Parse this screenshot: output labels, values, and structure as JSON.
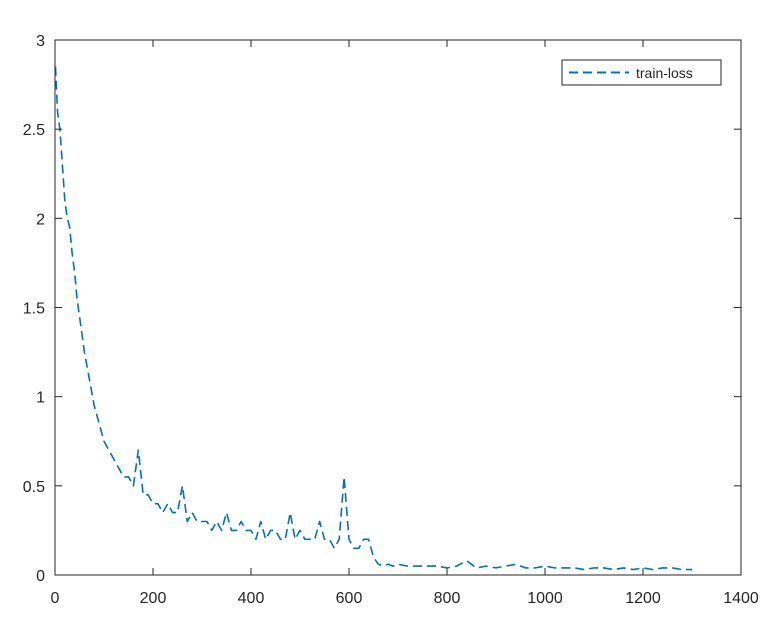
{
  "colors": {
    "series": "#0072BD",
    "axis": "#262626",
    "background": "#ffffff"
  },
  "chart_data": {
    "type": "line",
    "title": "",
    "xlabel": "",
    "ylabel": "",
    "xlim": [
      0,
      1400
    ],
    "ylim": [
      0,
      3
    ],
    "xticks": [
      0,
      200,
      400,
      600,
      800,
      1000,
      1200,
      1400
    ],
    "xtick_labels": [
      "0",
      "200",
      "400",
      "600",
      "800",
      "1000",
      "1200",
      "1400"
    ],
    "yticks": [
      0,
      0.5,
      1,
      1.5,
      2,
      2.5,
      3
    ],
    "ytick_labels": [
      "0",
      "0.5",
      "1",
      "1.5",
      "2",
      "2.5",
      "3"
    ],
    "grid": false,
    "box": true,
    "legend_position": "top-right",
    "series": [
      {
        "name": "train-loss",
        "line_style": "dashed",
        "color": "#0072BD",
        "x": [
          1,
          5,
          10,
          15,
          20,
          25,
          30,
          35,
          40,
          45,
          50,
          55,
          60,
          70,
          80,
          90,
          100,
          110,
          120,
          130,
          140,
          150,
          160,
          170,
          180,
          190,
          200,
          210,
          220,
          230,
          240,
          250,
          260,
          270,
          280,
          290,
          300,
          310,
          320,
          330,
          340,
          350,
          360,
          370,
          380,
          390,
          400,
          410,
          420,
          430,
          440,
          450,
          460,
          470,
          480,
          490,
          500,
          510,
          520,
          530,
          540,
          550,
          560,
          570,
          580,
          590,
          600,
          610,
          620,
          630,
          640,
          650,
          660,
          670,
          680,
          690,
          700,
          720,
          740,
          760,
          780,
          800,
          820,
          840,
          860,
          880,
          900,
          920,
          940,
          960,
          980,
          1000,
          1020,
          1040,
          1060,
          1080,
          1100,
          1120,
          1140,
          1160,
          1180,
          1200,
          1220,
          1240,
          1260,
          1280,
          1300
        ],
        "y": [
          2.85,
          2.6,
          2.5,
          2.3,
          2.1,
          2.0,
          1.95,
          1.8,
          1.7,
          1.55,
          1.45,
          1.35,
          1.25,
          1.1,
          0.95,
          0.85,
          0.75,
          0.7,
          0.65,
          0.6,
          0.55,
          0.55,
          0.5,
          0.7,
          0.45,
          0.45,
          0.4,
          0.4,
          0.35,
          0.4,
          0.35,
          0.35,
          0.5,
          0.3,
          0.35,
          0.3,
          0.3,
          0.3,
          0.25,
          0.3,
          0.25,
          0.35,
          0.25,
          0.25,
          0.3,
          0.25,
          0.25,
          0.2,
          0.3,
          0.2,
          0.25,
          0.25,
          0.2,
          0.2,
          0.35,
          0.2,
          0.25,
          0.2,
          0.2,
          0.2,
          0.3,
          0.2,
          0.2,
          0.15,
          0.2,
          0.55,
          0.2,
          0.15,
          0.15,
          0.2,
          0.2,
          0.1,
          0.06,
          0.05,
          0.06,
          0.05,
          0.06,
          0.05,
          0.05,
          0.05,
          0.05,
          0.04,
          0.05,
          0.08,
          0.04,
          0.05,
          0.04,
          0.05,
          0.06,
          0.04,
          0.04,
          0.05,
          0.04,
          0.04,
          0.04,
          0.03,
          0.04,
          0.04,
          0.03,
          0.04,
          0.03,
          0.04,
          0.03,
          0.04,
          0.04,
          0.03,
          0.03
        ]
      }
    ]
  }
}
